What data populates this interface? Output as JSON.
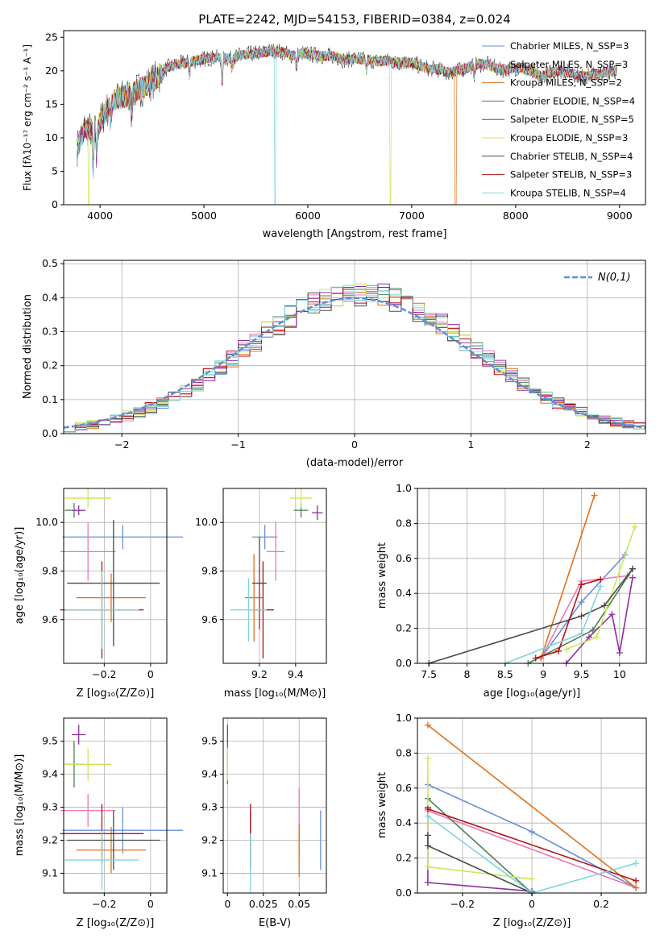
{
  "figure_title": "PLATE=2242, MJD=54153, FIBERID=0384, z=0.024",
  "colors": {
    "s0": "#6a8fd8",
    "s1": "#e879b8",
    "s2": "#e0711a",
    "s3": "#4f7f52",
    "s4": "#8e2ea3",
    "s5": "#c8e85a",
    "s6": "#4a4a4a",
    "s7": "#b3121a",
    "s8": "#7dd5dc"
  },
  "chart_data": [
    {
      "type": "line",
      "title": "PLATE=2242, MJD=54153, FIBERID=0384, z=0.024",
      "xlabel": "wavelength [Angstrom, rest frame]",
      "ylabel": "Flux [fλ10⁻¹⁷ erg cm⁻² s⁻¹ A⁻¹]",
      "xlim": [
        3650,
        9250
      ],
      "ylim": [
        0,
        26
      ],
      "xticks": [
        4000,
        5000,
        6000,
        7000,
        8000,
        9000
      ],
      "yticks": [
        0,
        5,
        10,
        15,
        20,
        25
      ],
      "grid": false,
      "legend_position": "right",
      "spectrum_x": [
        3780,
        3850,
        3950,
        4050,
        4150,
        4250,
        4350,
        4450,
        4550,
        4650,
        4750,
        4850,
        4950,
        5050,
        5150,
        5250,
        5350,
        5450,
        5550,
        5650,
        5750,
        5850,
        5950,
        6050,
        6150,
        6250,
        6350,
        6450,
        6550,
        6650,
        6750,
        6850,
        6950,
        7050,
        7150,
        7250,
        7350,
        7450,
        7550,
        7650,
        7750,
        7850,
        7950,
        8050,
        8150,
        8250,
        8350,
        8450,
        8550,
        8650,
        8750,
        8850,
        8980
      ],
      "spectrum_y": [
        8.5,
        11.5,
        11.0,
        13.8,
        15.8,
        16.2,
        17.0,
        17.8,
        19.0,
        20.5,
        21.0,
        21.3,
        21.6,
        21.9,
        22.0,
        21.8,
        22.3,
        22.5,
        22.7,
        23.0,
        22.8,
        22.3,
        22.6,
        22.4,
        22.2,
        22.2,
        21.6,
        21.8,
        21.7,
        21.4,
        21.5,
        21.2,
        21.3,
        20.9,
        20.4,
        20.2,
        19.7,
        20.0,
        20.6,
        21.0,
        20.9,
        20.1,
        20.3,
        20.5,
        19.8,
        19.2,
        19.8,
        20.0,
        19.6,
        19.1,
        19.4,
        19.7,
        20.1
      ],
      "series": [
        {
          "name": "Chabrier MILES, N_SSP=3"
        },
        {
          "name": "Salpeter MILES, N_SSP=3"
        },
        {
          "name": "Kroupa MILES, N_SSP=2"
        },
        {
          "name": "Chabrier ELODIE, N_SSP=4"
        },
        {
          "name": "Salpeter ELODIE, N_SSP=5"
        },
        {
          "name": "Kroupa ELODIE, N_SSP=3"
        },
        {
          "name": "Chabrier STELIB, N_SSP=4"
        },
        {
          "name": "Salpeter STELIB, N_SSP=3"
        },
        {
          "name": "Kroupa STELIB, N_SSP=4"
        }
      ]
    },
    {
      "type": "line",
      "xlabel": "(data-model)/error",
      "ylabel": "Normed distribution",
      "xlim": [
        -2.5,
        2.5
      ],
      "ylim": [
        0,
        0.51
      ],
      "xticks": [
        -2,
        -1,
        0,
        1,
        2
      ],
      "yticks": [
        0.0,
        0.1,
        0.2,
        0.3,
        0.4,
        0.5
      ],
      "grid": true,
      "legend_position": "top-right",
      "legend_label": "N(0,1)",
      "bin_width": 0.1,
      "hist_x": [
        -2.5,
        -2.4,
        -2.3,
        -2.2,
        -2.1,
        -2.0,
        -1.9,
        -1.8,
        -1.7,
        -1.6,
        -1.5,
        -1.4,
        -1.3,
        -1.2,
        -1.1,
        -1.0,
        -0.9,
        -0.8,
        -0.7,
        -0.6,
        -0.5,
        -0.4,
        -0.3,
        -0.2,
        -0.1,
        0.0,
        0.1,
        0.2,
        0.3,
        0.4,
        0.5,
        0.6,
        0.7,
        0.8,
        0.9,
        1.0,
        1.1,
        1.2,
        1.3,
        1.4,
        1.5,
        1.6,
        1.7,
        1.8,
        1.9,
        2.0,
        2.1,
        2.2,
        2.3,
        2.4
      ],
      "hist_base": [
        0.018,
        0.022,
        0.028,
        0.035,
        0.042,
        0.052,
        0.062,
        0.075,
        0.09,
        0.105,
        0.125,
        0.145,
        0.17,
        0.195,
        0.22,
        0.25,
        0.27,
        0.3,
        0.32,
        0.345,
        0.365,
        0.38,
        0.395,
        0.405,
        0.41,
        0.412,
        0.41,
        0.405,
        0.395,
        0.38,
        0.362,
        0.345,
        0.322,
        0.298,
        0.272,
        0.248,
        0.22,
        0.195,
        0.17,
        0.145,
        0.125,
        0.105,
        0.088,
        0.074,
        0.062,
        0.05,
        0.041,
        0.034,
        0.028,
        0.022
      ],
      "series": [
        {
          "name": "Chabrier MILES"
        },
        {
          "name": "Salpeter MILES"
        },
        {
          "name": "Kroupa MILES"
        },
        {
          "name": "Chabrier ELODIE"
        },
        {
          "name": "Salpeter ELODIE"
        },
        {
          "name": "Kroupa ELODIE"
        },
        {
          "name": "Chabrier STELIB"
        },
        {
          "name": "Salpeter STELIB"
        },
        {
          "name": "Kroupa STELIB"
        }
      ],
      "normal": {
        "mean": 0,
        "sigma": 1
      }
    },
    {
      "type": "scatter",
      "xlabel": "Z [log₁₀(Z/Z⊙)]",
      "ylabel": "age [log₁₀(age/yr)]",
      "xlim": [
        -0.375,
        0.07
      ],
      "ylim": [
        9.42,
        10.14
      ],
      "xticks": [
        -0.2,
        0.0
      ],
      "yticks": [
        9.6,
        9.8,
        10.0
      ],
      "grid": true,
      "points": [
        {
          "x": -0.12,
          "xerr": 0.26,
          "y": 9.94,
          "yerr": 0.05
        },
        {
          "x": -0.27,
          "xerr": 0.12,
          "y": 9.88,
          "yerr": 0.12
        },
        {
          "x": -0.17,
          "xerr": 0.15,
          "y": 9.69,
          "yerr": 0.1
        },
        {
          "x": -0.33,
          "xerr": 0.04,
          "y": 10.05,
          "yerr": 0.03
        },
        {
          "x": -0.31,
          "xerr": 0.03,
          "y": 10.05,
          "yerr": 0.02
        },
        {
          "x": -0.27,
          "xerr": 0.1,
          "y": 10.1,
          "yerr": 0.04
        },
        {
          "x": -0.16,
          "xerr": 0.2,
          "y": 9.75,
          "yerr": 0.26
        },
        {
          "x": -0.21,
          "xerr": 0.18,
          "y": 9.64,
          "yerr": 0.2
        },
        {
          "x": -0.21,
          "xerr": 0.16,
          "y": 9.64,
          "yerr": 0.16
        }
      ]
    },
    {
      "type": "scatter",
      "xlabel": "mass [log₁₀(M/M⊙)]",
      "xlim": [
        9.0,
        9.57
      ],
      "ylim": [
        9.42,
        10.14
      ],
      "xticks": [
        9.2,
        9.4
      ],
      "yticks": [
        9.6,
        9.8,
        10.0
      ],
      "grid": true,
      "points": [
        {
          "x": 9.23,
          "xerr": 0.07,
          "y": 9.94,
          "yerr": 0.05
        },
        {
          "x": 9.29,
          "xerr": 0.05,
          "y": 9.88,
          "yerr": 0.12
        },
        {
          "x": 9.17,
          "xerr": 0.05,
          "y": 9.69,
          "yerr": 0.18
        },
        {
          "x": 9.43,
          "xerr": 0.04,
          "y": 10.05,
          "yerr": 0.03
        },
        {
          "x": 9.52,
          "xerr": 0.03,
          "y": 10.04,
          "yerr": 0.03
        },
        {
          "x": 9.43,
          "xerr": 0.06,
          "y": 10.1,
          "yerr": 0.04
        },
        {
          "x": 9.2,
          "xerr": 0.04,
          "y": 9.75,
          "yerr": 0.19
        },
        {
          "x": 9.22,
          "xerr": 0.06,
          "y": 9.64,
          "yerr": 0.2
        },
        {
          "x": 9.14,
          "xerr": 0.1,
          "y": 9.64,
          "yerr": 0.13
        }
      ]
    },
    {
      "type": "line",
      "xlabel": "age [log₁₀(age/yr)]",
      "ylabel": "mass weight",
      "xlim": [
        7.35,
        10.35
      ],
      "ylim": [
        0,
        1
      ],
      "xticks": [
        7.5,
        8.0,
        8.5,
        9.0,
        9.5,
        10.0
      ],
      "yticks": [
        0.0,
        0.2,
        0.4,
        0.6,
        0.8,
        1.0
      ],
      "grid": true,
      "series": [
        {
          "x": [
            8.97,
            9.5,
            10.07
          ],
          "y": [
            0.03,
            0.35,
            0.62
          ]
        },
        {
          "x": [
            8.97,
            9.5,
            10.1
          ],
          "y": [
            0.03,
            0.47,
            0.5
          ]
        },
        {
          "x": [
            8.97,
            9.67
          ],
          "y": [
            0.03,
            0.96
          ]
        },
        {
          "x": [
            8.8,
            9.65,
            10.17
          ],
          "y": [
            0.0,
            0.19,
            0.54
          ]
        },
        {
          "x": [
            9.3,
            9.6,
            9.9,
            10.0,
            10.17
          ],
          "y": [
            0.0,
            0.15,
            0.28,
            0.06,
            0.49
          ]
        },
        {
          "x": [
            9.3,
            9.7,
            10.2
          ],
          "y": [
            0.08,
            0.15,
            0.78
          ]
        },
        {
          "x": [
            7.5,
            9.5,
            9.8,
            10.17
          ],
          "y": [
            0.0,
            0.27,
            0.33,
            0.54
          ]
        },
        {
          "x": [
            8.9,
            9.2,
            9.5,
            9.75
          ],
          "y": [
            0.03,
            0.07,
            0.45,
            0.48
          ]
        },
        {
          "x": [
            8.5,
            9.5,
            9.75
          ],
          "y": [
            0.0,
            0.17,
            0.44
          ]
        }
      ]
    },
    {
      "type": "scatter",
      "xlabel": "Z [log₁₀(Z/Z⊙)]",
      "ylabel": "mass [log₁₀(M/M⊙)]",
      "xlim": [
        -0.375,
        0.07
      ],
      "ylim": [
        9.04,
        9.57
      ],
      "xticks": [
        -0.2,
        0.0
      ],
      "yticks": [
        9.1,
        9.2,
        9.3,
        9.4,
        9.5
      ],
      "grid": true,
      "points": [
        {
          "x": -0.12,
          "xerr": 0.26,
          "y": 9.23,
          "yerr": 0.07
        },
        {
          "x": -0.27,
          "xerr": 0.12,
          "y": 9.29,
          "yerr": 0.05
        },
        {
          "x": -0.17,
          "xerr": 0.15,
          "y": 9.17,
          "yerr": 0.07
        },
        {
          "x": -0.33,
          "xerr": 0.04,
          "y": 9.43,
          "yerr": 0.07
        },
        {
          "x": -0.31,
          "xerr": 0.03,
          "y": 9.52,
          "yerr": 0.03
        },
        {
          "x": -0.27,
          "xerr": 0.1,
          "y": 9.43,
          "yerr": 0.05
        },
        {
          "x": -0.16,
          "xerr": 0.2,
          "y": 9.2,
          "yerr": 0.09
        },
        {
          "x": -0.21,
          "xerr": 0.18,
          "y": 9.22,
          "yerr": 0.09
        },
        {
          "x": -0.21,
          "xerr": 0.16,
          "y": 9.14,
          "yerr": 0.09
        }
      ]
    },
    {
      "type": "scatter",
      "xlabel": "E(B-V)",
      "xlim": [
        -0.003,
        0.069
      ],
      "ylim": [
        9.04,
        9.57
      ],
      "xticks": [
        0.0,
        0.025,
        0.05
      ],
      "yticks": [
        9.1,
        9.2,
        9.3,
        9.4,
        9.5
      ],
      "grid": true,
      "points": [
        {
          "x": 0.065,
          "xerr": 0,
          "y": 9.2,
          "yerr": 0.09
        },
        {
          "x": 0.05,
          "xerr": 0,
          "y": 9.26,
          "yerr": 0.1
        },
        {
          "x": 0.05,
          "xerr": 0,
          "y": 9.17,
          "yerr": 0.08
        },
        {
          "x": 0.0,
          "xerr": 0,
          "y": 9.43,
          "yerr": 0.06
        },
        {
          "x": 0.0,
          "xerr": 0,
          "y": 9.52,
          "yerr": 0.03
        },
        {
          "x": 0.0,
          "xerr": 0,
          "y": 9.43,
          "yerr": 0.05
        },
        {
          "x": 0.016,
          "xerr": 0,
          "y": 9.2,
          "yerr": 0.09
        },
        {
          "x": 0.016,
          "xerr": 0,
          "y": 9.22,
          "yerr": 0.09
        },
        {
          "x": 0.016,
          "xerr": 0,
          "y": 9.13,
          "yerr": 0.09
        }
      ]
    },
    {
      "type": "line",
      "xlabel": "Z [log₁₀(Z/Z⊙)]",
      "ylabel": "mass weight",
      "xlim": [
        -0.33,
        0.33
      ],
      "ylim": [
        0,
        1
      ],
      "xticks": [
        -0.2,
        0.0,
        0.2
      ],
      "yticks": [
        0.0,
        0.2,
        0.4,
        0.6,
        0.8,
        1.0
      ],
      "grid": true,
      "series": [
        {
          "x": [
            -0.3,
            0.0,
            0.3
          ],
          "y": [
            0.62,
            0.35,
            0.03
          ]
        },
        {
          "x": [
            -0.3,
            0.3
          ],
          "y": [
            0.47,
            0.03
          ]
        },
        {
          "x": [
            -0.3,
            0.3
          ],
          "y": [
            0.96,
            0.03
          ]
        },
        {
          "x": [
            -0.3,
            0.0
          ],
          "y": [
            0.54,
            0.0
          ]
        },
        {
          "x": [
            -0.3,
            -0.3,
            0.0
          ],
          "y": [
            0.49,
            0.06,
            0.01
          ]
        },
        {
          "x": [
            -0.3,
            -0.3,
            0.0
          ],
          "y": [
            0.77,
            0.15,
            0.08
          ]
        },
        {
          "x": [
            -0.3,
            -0.3,
            0.0
          ],
          "y": [
            0.33,
            0.27,
            0.0
          ]
        },
        {
          "x": [
            -0.3,
            0.3
          ],
          "y": [
            0.48,
            0.07
          ]
        },
        {
          "x": [
            -0.3,
            0.0,
            0.3
          ],
          "y": [
            0.44,
            0.0,
            0.17
          ]
        }
      ]
    }
  ]
}
